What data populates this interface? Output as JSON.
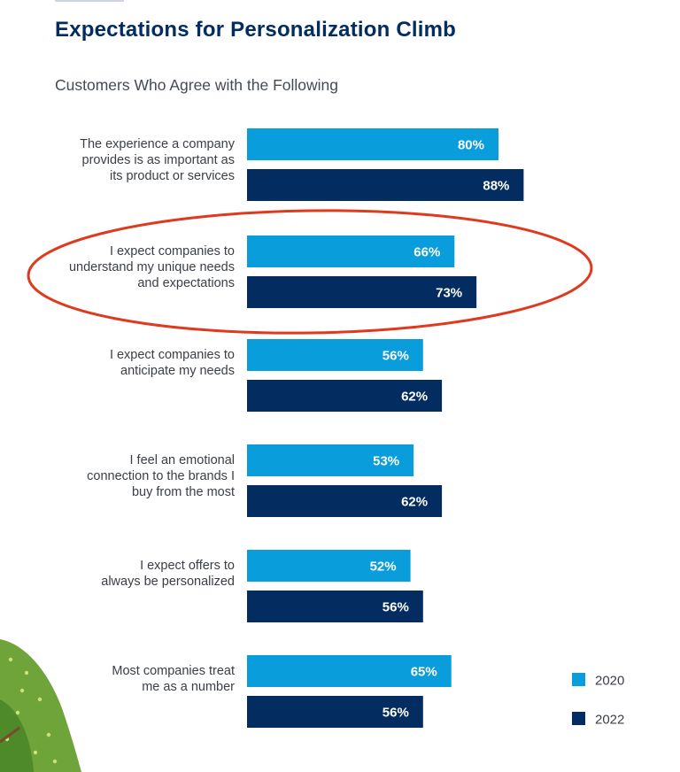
{
  "title": "Expectations for Personalization Climb",
  "subtitle": "Customers Who Agree with the Following",
  "colors": {
    "series_2020": "#0a9ddc",
    "series_2022": "#032d60",
    "highlight": "#e03a1e",
    "foliage": "#6fa43a"
  },
  "chart_data": {
    "type": "bar",
    "orientation": "horizontal",
    "title": "Expectations for Personalization Climb",
    "subtitle": "Customers Who Agree with the Following",
    "categories": [
      [
        "The experience a company",
        "provides is as important as",
        "its product or services"
      ],
      [
        "I expect companies to",
        "understand my unique needs",
        "and expectations"
      ],
      [
        "I expect companies to",
        "anticipate my needs"
      ],
      [
        "I feel an emotional",
        "connection to the brands I",
        "buy from the most"
      ],
      [
        "I expect offers to",
        "always be personalized"
      ],
      [
        "Most companies treat",
        "me as a number"
      ]
    ],
    "series": [
      {
        "name": "2020",
        "values": [
          80,
          66,
          56,
          53,
          52,
          65
        ]
      },
      {
        "name": "2022",
        "values": [
          88,
          73,
          62,
          62,
          56,
          56
        ]
      }
    ],
    "value_suffix": "%",
    "xlim": [
      0,
      100
    ],
    "legend": {
      "position": "bottom-right",
      "labels": [
        "2020",
        "2022"
      ]
    },
    "highlighted_category_index": 1,
    "grid": false
  }
}
